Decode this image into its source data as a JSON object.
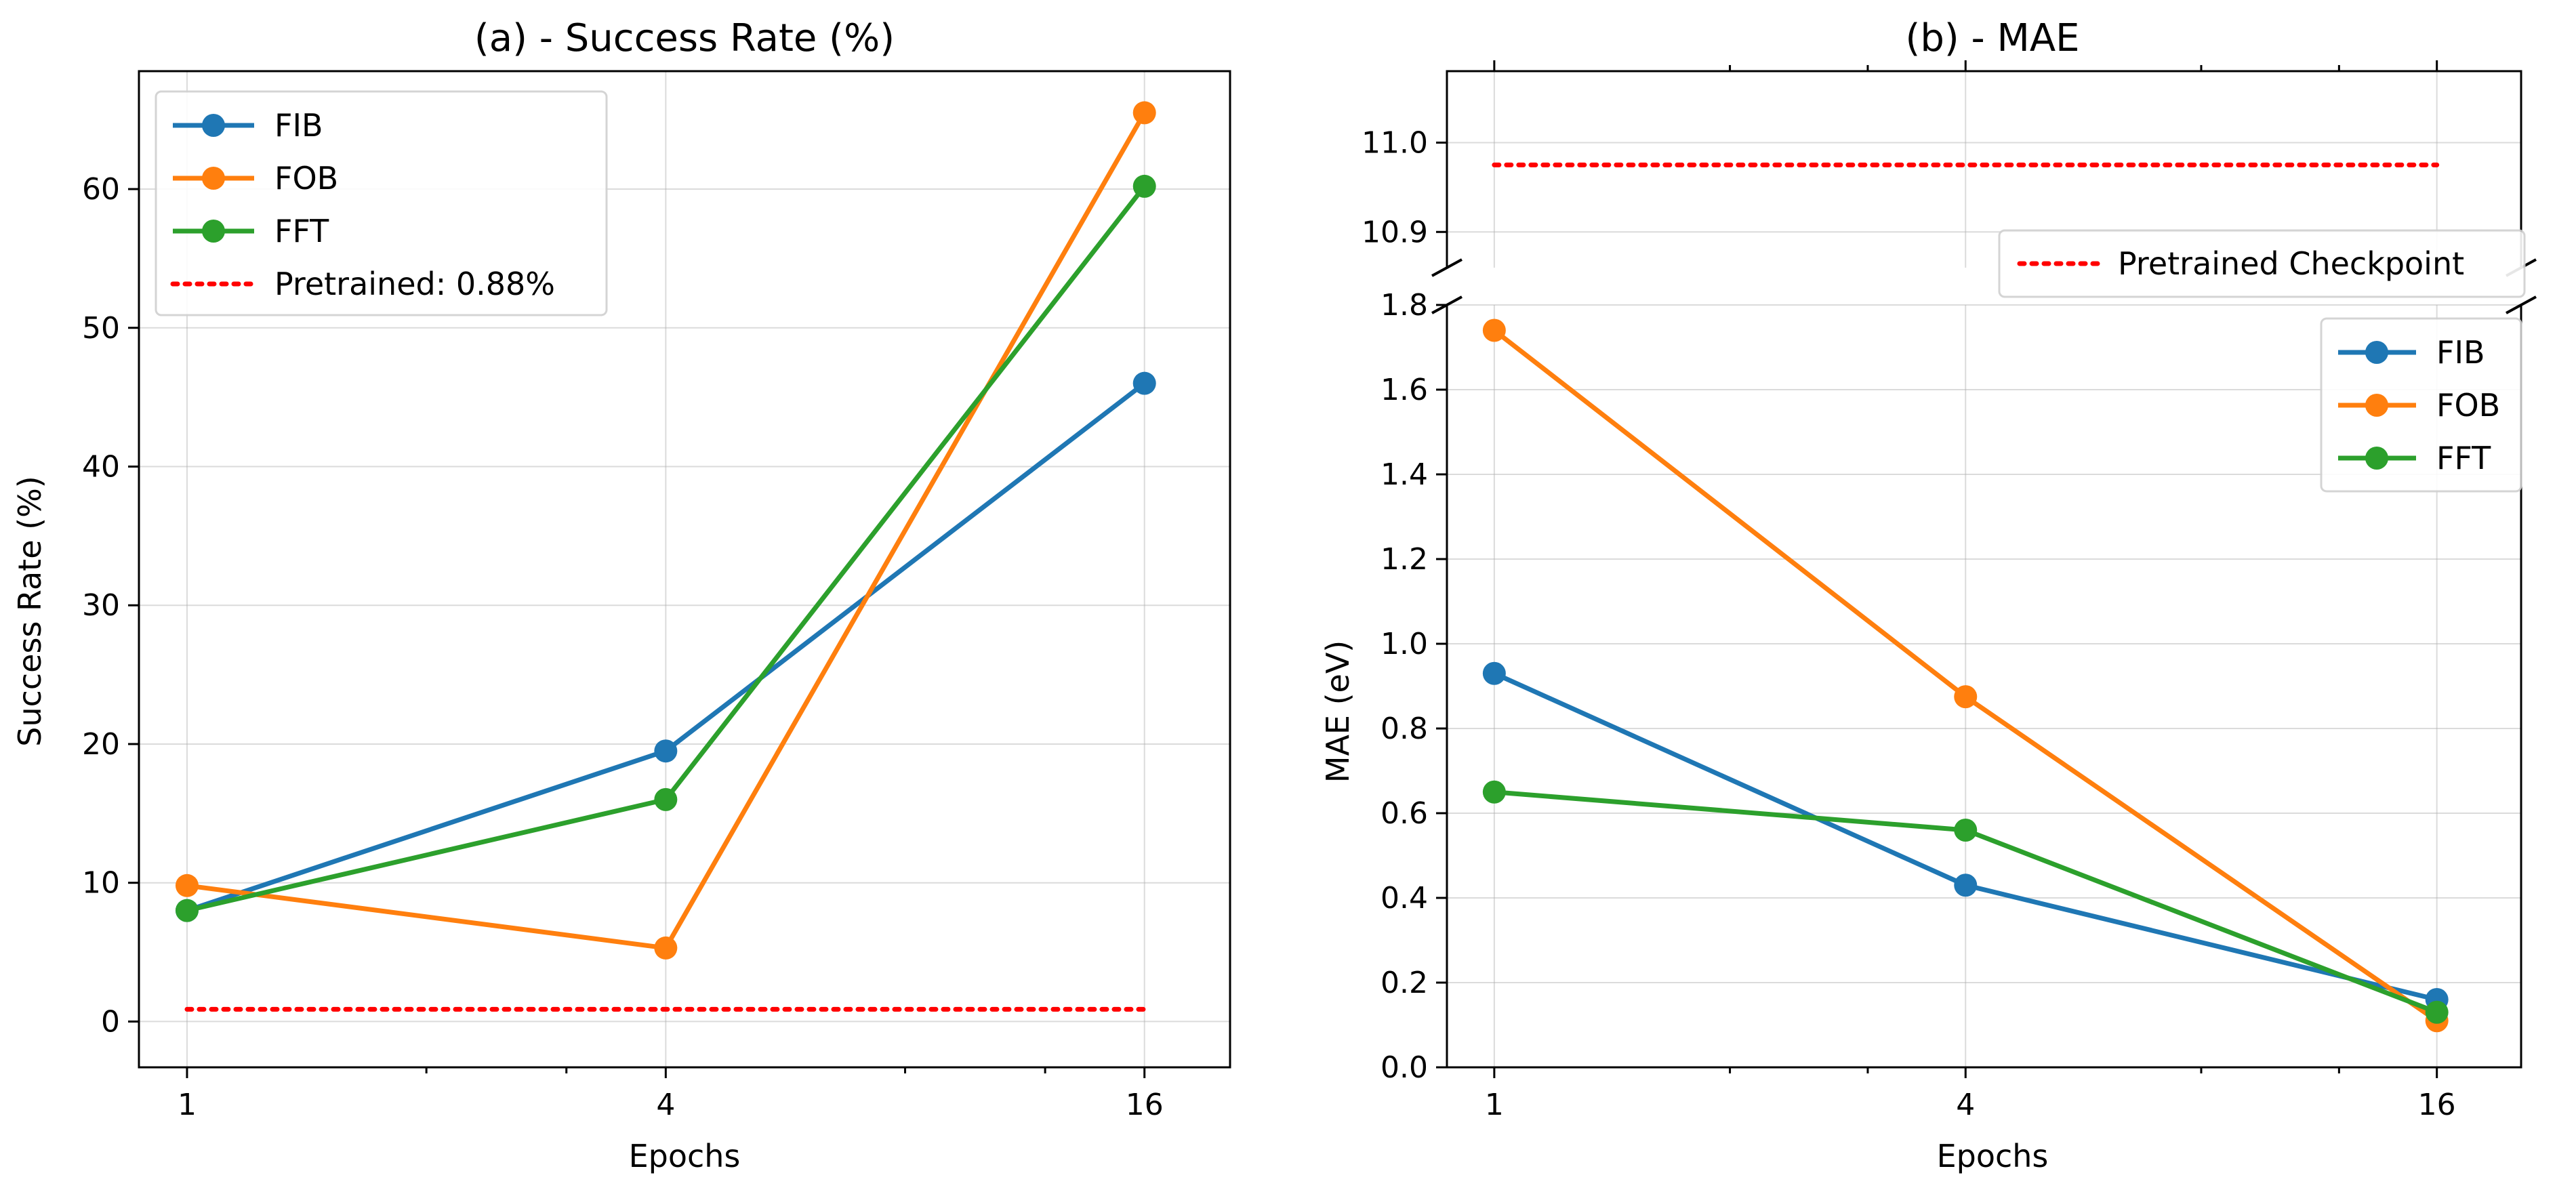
{
  "chart_data": [
    {
      "type": "line",
      "title": "(a) - Success Rate (%)",
      "xlabel": "Epochs",
      "ylabel": "Success Rate (%)",
      "x_scale": "log2",
      "x": [
        1,
        4,
        16
      ],
      "x_tick_labels": [
        "1",
        "4",
        "16"
      ],
      "xlim": [
        0.87,
        20.5
      ],
      "ylim": [
        -3.3,
        68.5
      ],
      "yticks": [
        0,
        10,
        20,
        30,
        40,
        50,
        60
      ],
      "y_tick_labels": [
        "0",
        "10",
        "20",
        "30",
        "40",
        "50",
        "60"
      ],
      "grid": true,
      "legend": "upper-left",
      "series": [
        {
          "name": "FIB",
          "color": "#1f77b4",
          "values": [
            8.0,
            19.5,
            46.0
          ]
        },
        {
          "name": "FOB",
          "color": "#ff7f0e",
          "values": [
            9.8,
            5.3,
            65.5
          ]
        },
        {
          "name": "FFT",
          "color": "#2ca02c",
          "values": [
            8.0,
            16.0,
            60.2
          ]
        }
      ],
      "reference_lines": [
        {
          "name": "Pretrained: 0.88%",
          "color": "#ff0000",
          "style": "dotted",
          "value": 0.88
        }
      ]
    },
    {
      "type": "line",
      "title": "(b) - MAE",
      "xlabel": "Epochs",
      "ylabel": "MAE (eV)",
      "x_scale": "log2",
      "x": [
        1,
        4,
        16
      ],
      "x_tick_labels": [
        "1",
        "4",
        "16"
      ],
      "xlim": [
        0.87,
        20.5
      ],
      "broken_y_axis": true,
      "upper_ylim": [
        10.86,
        11.08
      ],
      "upper_yticks": [
        10.9,
        11.0
      ],
      "upper_y_tick_labels": [
        "10.9",
        "11.0"
      ],
      "lower_ylim": [
        0.0,
        1.8
      ],
      "lower_yticks": [
        0.0,
        0.2,
        0.4,
        0.6,
        0.8,
        1.0,
        1.2,
        1.4,
        1.6,
        1.8
      ],
      "lower_y_tick_labels": [
        "0.0",
        "0.2",
        "0.4",
        "0.6",
        "0.8",
        "1.0",
        "1.2",
        "1.4",
        "1.6",
        "1.8"
      ],
      "grid": true,
      "legend": "upper-right",
      "series": [
        {
          "name": "FIB",
          "color": "#1f77b4",
          "values": [
            0.93,
            0.43,
            0.16
          ]
        },
        {
          "name": "FOB",
          "color": "#ff7f0e",
          "values": [
            1.74,
            0.875,
            0.11
          ]
        },
        {
          "name": "FFT",
          "color": "#2ca02c",
          "values": [
            0.65,
            0.56,
            0.13
          ]
        }
      ],
      "reference_lines": [
        {
          "name": "Pretrained Checkpoint",
          "color": "#ff0000",
          "style": "dotted",
          "value": 10.975
        }
      ]
    }
  ]
}
